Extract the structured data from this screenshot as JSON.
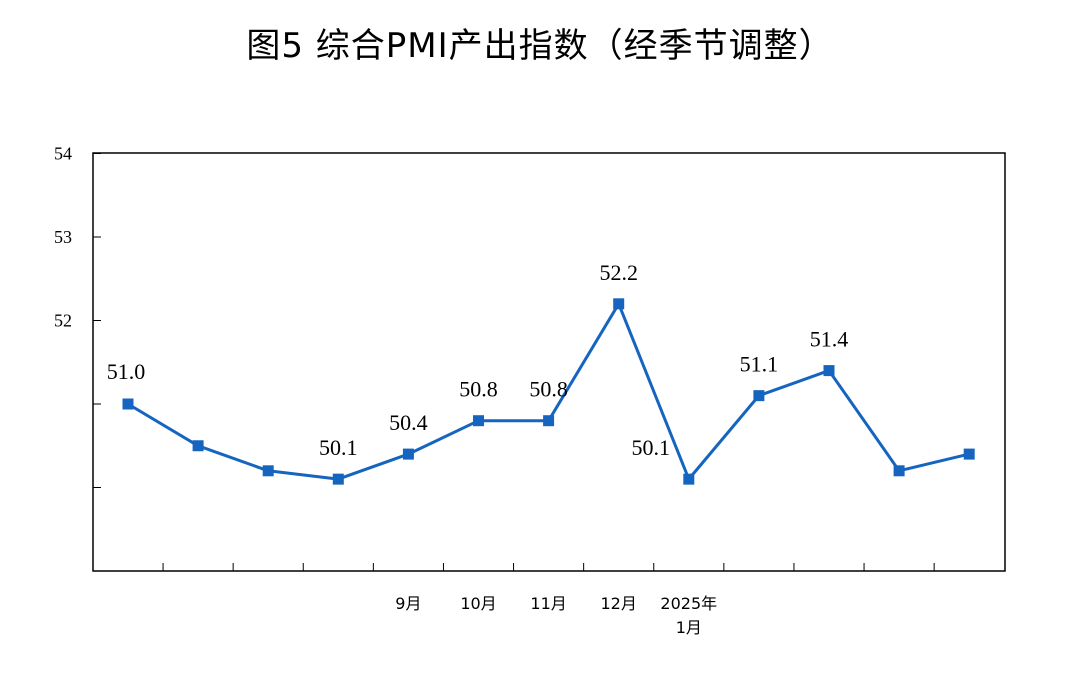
{
  "title": "图5  综合PMI产出指数（经季节调整）",
  "chart_data": {
    "type": "line",
    "title": "图5  综合PMI产出指数（经季节调整）",
    "xlabel": "",
    "ylabel": "",
    "ylim": [
      49,
      55
    ],
    "y_ticks": [
      "54",
      "53",
      "52"
    ],
    "grid": false,
    "legend": "none",
    "color": "#1565C0",
    "categories": [
      "",
      "",
      "",
      "",
      "9月",
      "10月",
      "11月",
      "12月",
      "2025年\n1月",
      "",
      "",
      "",
      ""
    ],
    "values": [
      51.0,
      50.5,
      50.2,
      50.1,
      50.4,
      50.8,
      50.8,
      52.2,
      50.1,
      51.1,
      51.4,
      50.2,
      50.4
    ],
    "data_labels": [
      "51.0",
      "",
      "",
      "50.1",
      "50.4",
      "50.8",
      "50.8",
      "52.2",
      "50.1",
      "51.1",
      "51.4",
      "",
      ""
    ]
  }
}
